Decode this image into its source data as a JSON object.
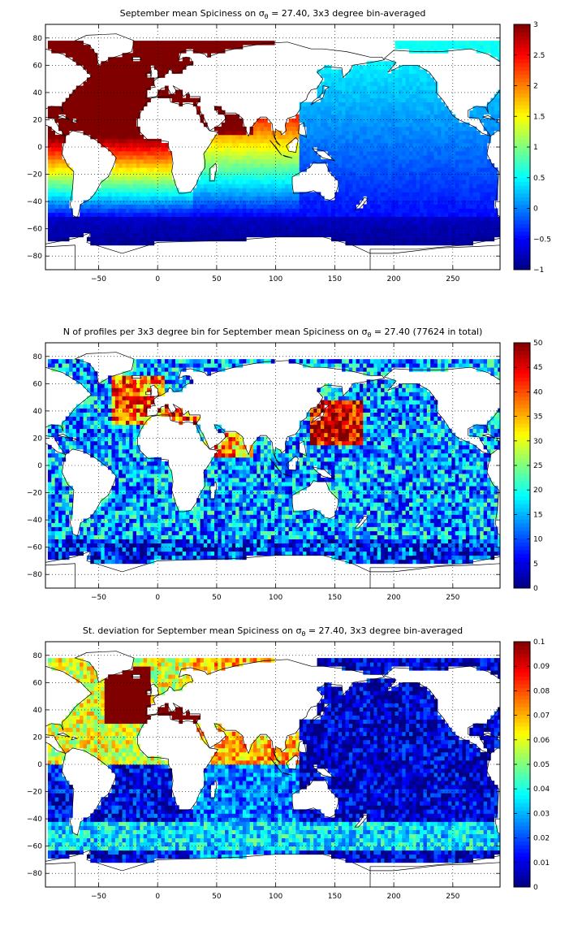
{
  "chart_data": [
    {
      "type": "heatmap",
      "title": "September mean Spiciness on σθ = 27.40, 3x3 degree bin-averaged",
      "title_parts": {
        "pre": "September mean Spiciness on ",
        "sym": "σ",
        "sub": "θ",
        "post": " = 27.40, 3x3 degree bin-averaged"
      },
      "xlim": [
        -95,
        290
      ],
      "ylim": [
        -90,
        90
      ],
      "xticks": [
        -50,
        0,
        50,
        100,
        150,
        200,
        250
      ],
      "yticks": [
        -80,
        -60,
        -40,
        -20,
        0,
        20,
        40,
        60,
        80
      ],
      "grid": true,
      "colorbar": {
        "range": [
          -1,
          3
        ],
        "ticks": [
          -1,
          -0.5,
          0,
          0.5,
          1,
          1.5,
          2,
          2.5,
          3
        ]
      },
      "field": "mean_spiciness"
    },
    {
      "type": "heatmap",
      "title": "N of profiles per 3x3 degree bin for September mean Spiciness on σθ = 27.40 (77624 in total)",
      "title_parts": {
        "pre": "N of profiles per 3x3 degree bin for September mean Spiciness on ",
        "sym": "σ",
        "sub": "θ",
        "post": " = 27.40 (77624 in total)"
      },
      "xlim": [
        -95,
        290
      ],
      "ylim": [
        -90,
        90
      ],
      "xticks": [
        -50,
        0,
        50,
        100,
        150,
        200,
        250
      ],
      "yticks": [
        -80,
        -60,
        -40,
        -20,
        0,
        20,
        40,
        60,
        80
      ],
      "grid": true,
      "colorbar": {
        "range": [
          0,
          50
        ],
        "ticks": [
          0,
          5,
          10,
          15,
          20,
          25,
          30,
          35,
          40,
          45,
          50
        ]
      },
      "field": "profile_count"
    },
    {
      "type": "heatmap",
      "title": "St. deviation for September mean Spiciness on σθ = 27.40, 3x3 degree bin-averaged",
      "title_parts": {
        "pre": "St. deviation for September mean Spiciness on ",
        "sym": "σ",
        "sub": "θ",
        "post": " = 27.40, 3x3 degree bin-averaged"
      },
      "xlim": [
        -95,
        290
      ],
      "ylim": [
        -90,
        90
      ],
      "xticks": [
        -50,
        0,
        50,
        100,
        150,
        200,
        250
      ],
      "yticks": [
        -80,
        -60,
        -40,
        -20,
        0,
        20,
        40,
        60,
        80
      ],
      "grid": true,
      "colorbar": {
        "range": [
          0,
          0.1
        ],
        "ticks": [
          0,
          0.01,
          0.02,
          0.03,
          0.04,
          0.05,
          0.06,
          0.07,
          0.08,
          0.09,
          0.1
        ]
      },
      "field": "std_spiciness"
    }
  ]
}
